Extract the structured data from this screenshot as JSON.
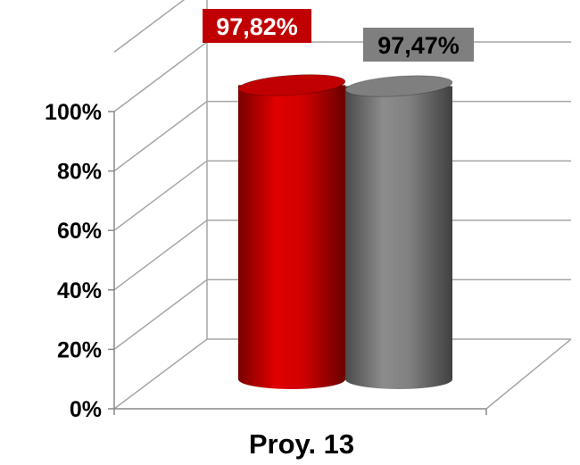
{
  "chart_data": {
    "type": "bar",
    "style": "3d-cylinder",
    "categories": [
      "Proy. 13"
    ],
    "series": [
      {
        "values": [
          97.82
        ],
        "label": "97,82%",
        "color": "#c00000",
        "label_bg": "#c00000",
        "label_color": "#ffffff"
      },
      {
        "values": [
          97.47
        ],
        "label": "97,47%",
        "color": "#7f7f7f",
        "label_bg": "#7f7f7f",
        "label_color": "#000000"
      }
    ],
    "yticks": [
      0,
      20,
      40,
      60,
      80,
      100
    ],
    "ytick_labels": [
      "0%",
      "20%",
      "40%",
      "60%",
      "80%",
      "100%"
    ],
    "ylim": [
      0,
      100
    ],
    "grid": true,
    "gridline_color": "#a6a6a6",
    "legend": false
  }
}
